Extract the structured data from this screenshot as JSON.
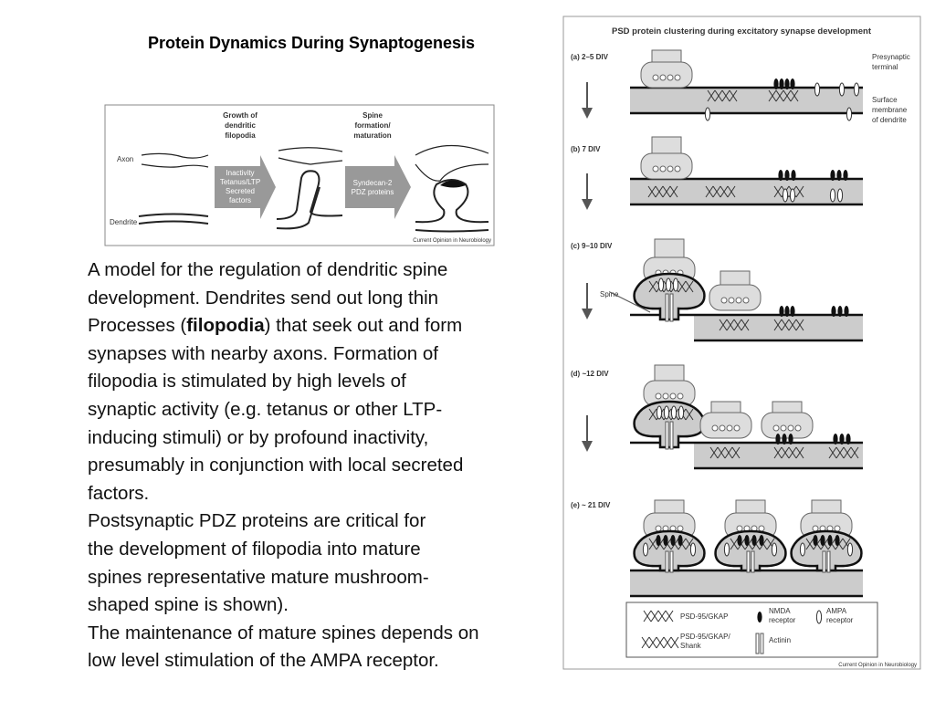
{
  "title": "Protein Dynamics During Synaptogenesis",
  "left_figure": {
    "axon": "Axon",
    "dendrite": "Dendrite",
    "stage1": [
      "Growth of",
      "dendritic",
      "filopodia"
    ],
    "stage2": [
      "Spine",
      "formation/",
      "maturation"
    ],
    "arrow1": [
      "Inactivity",
      "Tetanus/LTP",
      "Secreted",
      "factors"
    ],
    "arrow2": [
      "Syndecan-2",
      "PDZ proteins"
    ],
    "credit": "Current Opinion in Neurobiology"
  },
  "body": {
    "lines": [
      "A model for the regulation of dendritic spine",
      "development. Dendrites send out long thin",
      [
        "Processes (",
        "filopodia",
        ") that seek out and form"
      ],
      "synapses with nearby axons. Formation of",
      "filopodia is stimulated by high levels of",
      "synaptic activity (e.g. tetanus or other LTP-",
      "inducing stimuli) or by profound inactivity,",
      "presumably in conjunction with local secreted",
      "factors.",
      "Postsynaptic PDZ proteins are critical for",
      "the development of filopodia into mature",
      "spines representative mature mushroom-",
      "shaped spine is shown).",
      "The maintenance of mature spines depends on",
      "low level stimulation of the AMPA receptor."
    ]
  },
  "right_figure": {
    "title": "PSD protein clustering during excitatory synapse development",
    "stages": [
      "(a) 2–5 DIV",
      "(b) 7 DIV",
      "(c) 9–10 DIV",
      "(d) ~12 DIV",
      "(e) ~ 21 DIV"
    ],
    "presynaptic": [
      "Presynaptic",
      "terminal"
    ],
    "surface": [
      "Surface",
      "membrane",
      "of dendrite"
    ],
    "spine": "Spine",
    "legend": {
      "psd_gkap": "PSD-95/GKAP",
      "psd_gkap_shank": [
        "PSD-95/GKAP/",
        "Shank"
      ],
      "nmda": [
        "NMDA",
        "receptor"
      ],
      "actinin": "Actinin",
      "ampa": [
        "AMPA",
        "receptor"
      ]
    },
    "credit": "Current Opinion in Neurobiology"
  }
}
